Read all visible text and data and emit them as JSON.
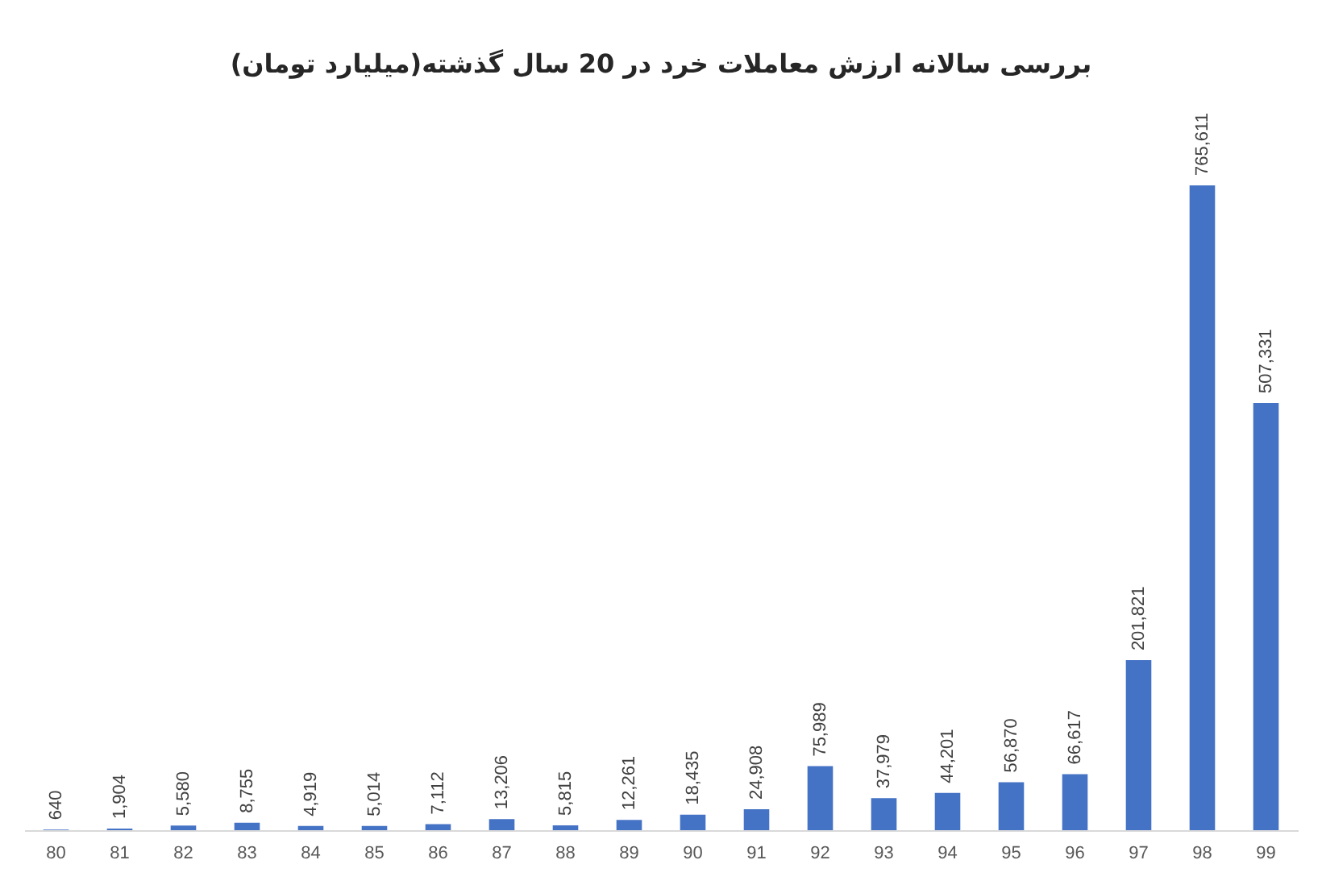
{
  "chart_data": {
    "type": "bar",
    "title": "بررسی سالانه ارزش معاملات خرد در 20 سال گذشته(میلیارد تومان)",
    "categories": [
      "80",
      "81",
      "82",
      "83",
      "84",
      "85",
      "86",
      "87",
      "88",
      "89",
      "90",
      "91",
      "92",
      "93",
      "94",
      "95",
      "96",
      "97",
      "98",
      "99"
    ],
    "values": [
      640,
      1904,
      5580,
      8755,
      4919,
      5014,
      7112,
      13206,
      5815,
      12261,
      18435,
      24908,
      75989,
      37979,
      44201,
      56870,
      66617,
      201821,
      765611,
      507331
    ],
    "value_labels": [
      "640",
      "1,904",
      "5,580",
      "8,755",
      "4,919",
      "5,014",
      "7,112",
      "13,206",
      "5,815",
      "12,261",
      "18,435",
      "24,908",
      "75,989",
      "37,979",
      "44,201",
      "56,870",
      "66,617",
      "201,821",
      "765,611",
      "507,331"
    ],
    "color": "#4472c4"
  }
}
